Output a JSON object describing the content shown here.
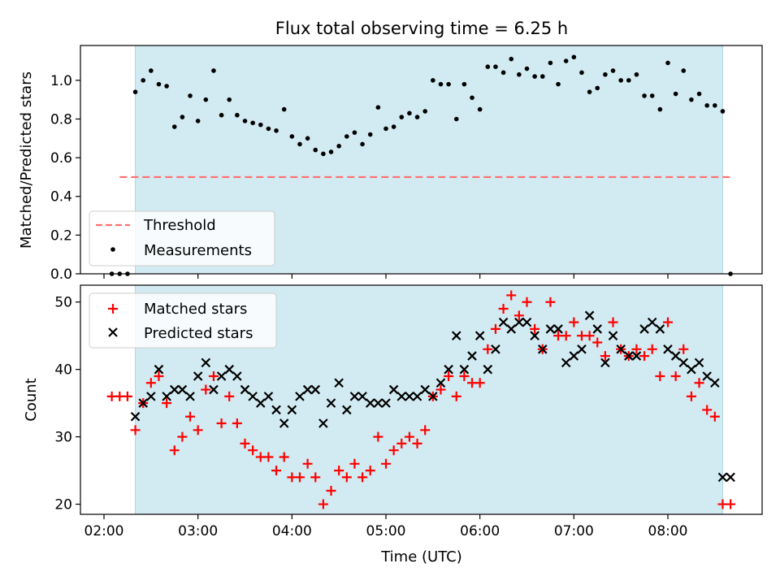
{
  "title": "Flux total observing time = 6.25 h",
  "colors": {
    "observing_window": "#add8e6",
    "threshold": "#ff6f6f",
    "measurements": "#000000",
    "matched": "#ff0000",
    "predicted": "#000000"
  },
  "chart_data": [
    {
      "type": "scatter",
      "panel": "top",
      "ylabel": "Matched/Predicted stars",
      "xlabel": "",
      "xlim": [
        "02:00",
        "09:00"
      ],
      "ylim": [
        0,
        1.18
      ],
      "yticks": [
        0.0,
        0.2,
        0.4,
        0.6,
        0.8,
        1.0
      ],
      "ytick_labels": [
        "0.0",
        "0.2",
        "0.4",
        "0.6",
        "0.8",
        "1.0"
      ],
      "x_tick_labels_visible": false,
      "grid": false,
      "legend_location": "lower-left",
      "observing_window": [
        "02:20",
        "08:35"
      ],
      "threshold": {
        "name": "Threshold",
        "value": 0.5,
        "x_range": [
          "02:10",
          "08:40"
        ],
        "style": "dashed"
      },
      "series": [
        {
          "name": "Measurements",
          "marker": "dot",
          "x": [
            "02:05",
            "02:10",
            "02:15",
            "02:20",
            "02:25",
            "02:30",
            "02:35",
            "02:40",
            "02:45",
            "02:50",
            "02:55",
            "03:00",
            "03:05",
            "03:10",
            "03:15",
            "03:20",
            "03:25",
            "03:30",
            "03:35",
            "03:40",
            "03:45",
            "03:50",
            "03:55",
            "04:00",
            "04:05",
            "04:10",
            "04:15",
            "04:20",
            "04:25",
            "04:30",
            "04:35",
            "04:40",
            "04:45",
            "04:50",
            "04:55",
            "05:00",
            "05:05",
            "05:10",
            "05:15",
            "05:20",
            "05:25",
            "05:30",
            "05:35",
            "05:40",
            "05:45",
            "05:50",
            "05:55",
            "06:00",
            "06:05",
            "06:10",
            "06:15",
            "06:20",
            "06:25",
            "06:30",
            "06:35",
            "06:40",
            "06:45",
            "06:50",
            "06:55",
            "07:00",
            "07:05",
            "07:10",
            "07:15",
            "07:20",
            "07:25",
            "07:30",
            "07:35",
            "07:40",
            "07:45",
            "07:50",
            "07:55",
            "08:00",
            "08:05",
            "08:10",
            "08:15",
            "08:20",
            "08:25",
            "08:30",
            "08:35",
            "08:40"
          ],
          "y": [
            0.0,
            0.0,
            0.0,
            0.94,
            1.0,
            1.05,
            0.98,
            0.97,
            0.76,
            0.81,
            0.92,
            0.79,
            0.9,
            1.05,
            0.82,
            0.9,
            0.82,
            0.79,
            0.78,
            0.77,
            0.75,
            0.74,
            0.85,
            0.71,
            0.67,
            0.7,
            0.64,
            0.62,
            0.63,
            0.66,
            0.71,
            0.73,
            0.67,
            0.72,
            0.86,
            0.75,
            0.76,
            0.81,
            0.83,
            0.81,
            0.84,
            1.0,
            0.98,
            0.98,
            0.8,
            0.98,
            0.91,
            0.85,
            1.07,
            1.07,
            1.04,
            1.11,
            1.03,
            1.06,
            1.02,
            1.02,
            1.09,
            0.98,
            1.1,
            1.12,
            1.04,
            0.94,
            0.96,
            1.03,
            1.05,
            1.0,
            1.0,
            1.03,
            0.92,
            0.92,
            0.85,
            1.09,
            0.93,
            1.05,
            0.9,
            0.93,
            0.87,
            0.87,
            0.84,
            0.0
          ]
        }
      ]
    },
    {
      "type": "scatter",
      "panel": "bottom",
      "ylabel": "Count",
      "xlabel": "Time (UTC)",
      "xlim": [
        "02:00",
        "09:00"
      ],
      "ylim": [
        18.5,
        52.5
      ],
      "yticks": [
        20,
        30,
        40,
        50
      ],
      "ytick_labels": [
        "20",
        "30",
        "40",
        "50"
      ],
      "xticks": [
        "02:00",
        "03:00",
        "04:00",
        "05:00",
        "06:00",
        "07:00",
        "08:00"
      ],
      "xtick_labels": [
        "02:00",
        "03:00",
        "04:00",
        "05:00",
        "06:00",
        "07:00",
        "08:00"
      ],
      "grid": false,
      "legend_location": "top-left",
      "observing_window": [
        "02:20",
        "08:35"
      ],
      "series": [
        {
          "name": "Matched stars",
          "marker": "plus",
          "x": [
            "02:05",
            "02:10",
            "02:15",
            "02:20",
            "02:25",
            "02:30",
            "02:35",
            "02:40",
            "02:45",
            "02:50",
            "02:55",
            "03:00",
            "03:05",
            "03:10",
            "03:15",
            "03:20",
            "03:25",
            "03:30",
            "03:35",
            "03:40",
            "03:45",
            "03:50",
            "03:55",
            "04:00",
            "04:05",
            "04:10",
            "04:15",
            "04:20",
            "04:25",
            "04:30",
            "04:35",
            "04:40",
            "04:45",
            "04:50",
            "04:55",
            "05:00",
            "05:05",
            "05:10",
            "05:15",
            "05:20",
            "05:25",
            "05:30",
            "05:35",
            "05:40",
            "05:45",
            "05:50",
            "05:55",
            "06:00",
            "06:05",
            "06:10",
            "06:15",
            "06:20",
            "06:25",
            "06:30",
            "06:35",
            "06:40",
            "06:45",
            "06:50",
            "06:55",
            "07:00",
            "07:05",
            "07:10",
            "07:15",
            "07:20",
            "07:25",
            "07:30",
            "07:35",
            "07:40",
            "07:45",
            "07:50",
            "07:55",
            "08:00",
            "08:05",
            "08:10",
            "08:15",
            "08:20",
            "08:25",
            "08:30",
            "08:35",
            "08:40"
          ],
          "y": [
            36,
            36,
            36,
            31,
            35,
            38,
            39,
            35,
            28,
            30,
            33,
            31,
            37,
            39,
            32,
            36,
            32,
            29,
            28,
            27,
            27,
            25,
            27,
            24,
            24,
            26,
            24,
            20,
            22,
            25,
            24,
            26,
            24,
            25,
            30,
            26,
            28,
            29,
            30,
            29,
            31,
            36,
            37,
            39,
            36,
            39,
            38,
            38,
            43,
            46,
            49,
            51,
            48,
            50,
            46,
            43,
            50,
            45,
            45,
            47,
            45,
            45,
            44,
            42,
            47,
            43,
            42,
            43,
            42,
            43,
            39,
            47,
            39,
            43,
            36,
            38,
            34,
            33,
            20,
            20
          ]
        },
        {
          "name": "Predicted stars",
          "marker": "x",
          "x": [
            "02:20",
            "02:25",
            "02:30",
            "02:35",
            "02:40",
            "02:45",
            "02:50",
            "02:55",
            "03:00",
            "03:05",
            "03:10",
            "03:15",
            "03:20",
            "03:25",
            "03:30",
            "03:35",
            "03:40",
            "03:45",
            "03:50",
            "03:55",
            "04:00",
            "04:05",
            "04:10",
            "04:15",
            "04:20",
            "04:25",
            "04:30",
            "04:35",
            "04:40",
            "04:45",
            "04:50",
            "04:55",
            "05:00",
            "05:05",
            "05:10",
            "05:15",
            "05:20",
            "05:25",
            "05:30",
            "05:35",
            "05:40",
            "05:45",
            "05:50",
            "05:55",
            "06:00",
            "06:05",
            "06:10",
            "06:15",
            "06:20",
            "06:25",
            "06:30",
            "06:35",
            "06:40",
            "06:45",
            "06:50",
            "06:55",
            "07:00",
            "07:05",
            "07:10",
            "07:15",
            "07:20",
            "07:25",
            "07:30",
            "07:35",
            "07:40",
            "07:45",
            "07:50",
            "07:55",
            "08:00",
            "08:05",
            "08:10",
            "08:15",
            "08:20",
            "08:25",
            "08:30",
            "08:35",
            "08:40"
          ],
          "y": [
            33,
            35,
            36,
            40,
            36,
            37,
            37,
            36,
            39,
            41,
            37,
            39,
            40,
            39,
            37,
            36,
            35,
            36,
            34,
            32,
            34,
            36,
            37,
            37,
            32,
            35,
            38,
            34,
            36,
            36,
            35,
            35,
            35,
            37,
            36,
            36,
            36,
            37,
            36,
            38,
            40,
            45,
            40,
            42,
            45,
            40,
            43,
            47,
            46,
            47,
            47,
            45,
            43,
            46,
            46,
            41,
            42,
            43,
            48,
            46,
            41,
            45,
            43,
            42,
            42,
            46,
            47,
            46,
            43,
            42,
            41,
            40,
            41,
            39,
            38,
            24,
            24
          ]
        }
      ]
    }
  ]
}
